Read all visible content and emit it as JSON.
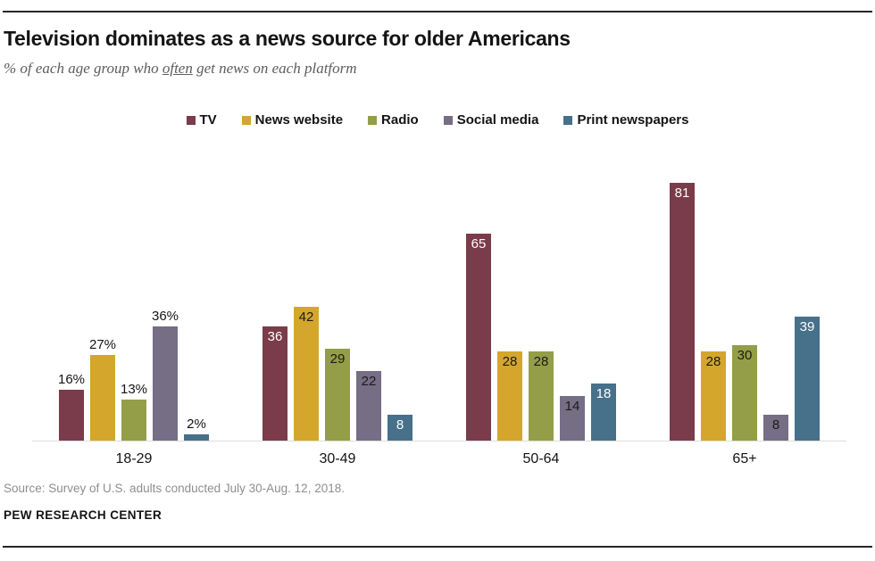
{
  "header": {
    "title": "Television dominates as a news source for older Americans",
    "subtitle_prefix": "% of each age group who ",
    "subtitle_emphasis": "often",
    "subtitle_suffix": " get news on each platform"
  },
  "chart_data": {
    "type": "bar",
    "title": "Television dominates as a news source for older Americans",
    "subtitle": "% of each age group who often get news on each platform",
    "categories": [
      "18-29",
      "30-49",
      "50-64",
      "65+"
    ],
    "series": [
      {
        "name": "TV",
        "color": "#7a3b4a",
        "label_inside_color": "#ffffff",
        "values": [
          16,
          36,
          65,
          81
        ],
        "labels": [
          "16%",
          "36",
          "65",
          "81"
        ]
      },
      {
        "name": "News website",
        "color": "#d4a62c",
        "label_inside_color": "#1a1a1a",
        "values": [
          27,
          42,
          28,
          28
        ],
        "labels": [
          "27%",
          "42",
          "28",
          "28"
        ]
      },
      {
        "name": "Radio",
        "color": "#949d48",
        "label_inside_color": "#1a1a1a",
        "values": [
          13,
          29,
          28,
          30
        ],
        "labels": [
          "13%",
          "29",
          "28",
          "30"
        ]
      },
      {
        "name": "Social media",
        "color": "#756e85",
        "label_inside_color": "#1a1a1a",
        "values": [
          36,
          22,
          14,
          8
        ],
        "labels": [
          "36%",
          "22",
          "14",
          "8"
        ]
      },
      {
        "name": "Print newspapers",
        "color": "#47708b",
        "label_inside_color": "#ffffff",
        "values": [
          2,
          8,
          18,
          39
        ],
        "labels": [
          "2%",
          "8",
          "18",
          "39"
        ]
      }
    ],
    "label_placement": [
      "above",
      "inside",
      "inside",
      "inside"
    ],
    "ylim": [
      0,
      100
    ],
    "grid": false,
    "legend_position": "top-center",
    "xlabel": "",
    "ylabel": ""
  },
  "footer": {
    "source": "Source: Survey of U.S. adults conducted July 30-Aug. 12, 2018.",
    "branding": "PEW RESEARCH CENTER"
  }
}
